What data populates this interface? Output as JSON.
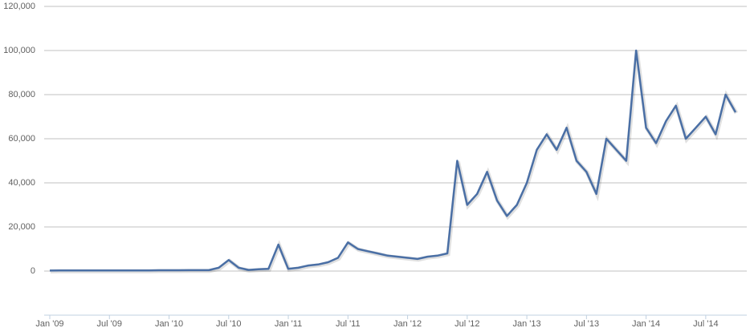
{
  "chart_data": {
    "type": "line",
    "x": [
      "2009-01",
      "2009-02",
      "2009-03",
      "2009-04",
      "2009-05",
      "2009-06",
      "2009-07",
      "2009-08",
      "2009-09",
      "2009-10",
      "2009-11",
      "2009-12",
      "2010-01",
      "2010-02",
      "2010-03",
      "2010-04",
      "2010-05",
      "2010-06",
      "2010-07",
      "2010-08",
      "2010-09",
      "2010-10",
      "2010-11",
      "2010-12",
      "2011-01",
      "2011-02",
      "2011-03",
      "2011-04",
      "2011-05",
      "2011-06",
      "2011-07",
      "2011-08",
      "2011-09",
      "2011-10",
      "2011-11",
      "2011-12",
      "2012-01",
      "2012-02",
      "2012-03",
      "2012-04",
      "2012-05",
      "2012-06",
      "2012-07",
      "2012-08",
      "2012-09",
      "2012-10",
      "2012-11",
      "2012-12",
      "2013-01",
      "2013-02",
      "2013-03",
      "2013-04",
      "2013-05",
      "2013-06",
      "2013-07",
      "2013-08",
      "2013-09",
      "2013-10",
      "2013-11",
      "2013-12",
      "2014-01",
      "2014-02",
      "2014-03",
      "2014-04",
      "2014-05",
      "2014-06",
      "2014-07",
      "2014-08",
      "2014-09",
      "2014-10"
    ],
    "series": [
      {
        "color": "#4a6fa5",
        "values": [
          200,
          250,
          250,
          300,
          300,
          300,
          300,
          300,
          300,
          300,
          300,
          350,
          350,
          350,
          400,
          400,
          400,
          1500,
          5000,
          1500,
          500,
          800,
          1000,
          12000,
          1000,
          1500,
          2500,
          3000,
          4000,
          6000,
          13000,
          10000,
          9000,
          8000,
          7000,
          6500,
          6000,
          5500,
          6500,
          7000,
          8000,
          50000,
          30000,
          35000,
          45000,
          32000,
          25000,
          30000,
          40000,
          55000,
          62000,
          55000,
          65000,
          50000,
          45000,
          35000,
          60000,
          55000,
          50000,
          100000,
          65000,
          58000,
          68000,
          75000,
          60000,
          65000,
          70000,
          62000,
          80000,
          72000
        ]
      }
    ],
    "xlim": [
      "2009-01",
      "2014-10"
    ],
    "xticks": [
      {
        "value": "2009-01",
        "label": "Jan '09"
      },
      {
        "value": "2009-07",
        "label": "Jul '09"
      },
      {
        "value": "2010-01",
        "label": "Jan '10"
      },
      {
        "value": "2010-07",
        "label": "Jul '10"
      },
      {
        "value": "2011-01",
        "label": "Jan '11"
      },
      {
        "value": "2011-07",
        "label": "Jul '11"
      },
      {
        "value": "2012-01",
        "label": "Jan '12"
      },
      {
        "value": "2012-07",
        "label": "Jul '12"
      },
      {
        "value": "2013-01",
        "label": "Jan '13"
      },
      {
        "value": "2013-07",
        "label": "Jul '13"
      },
      {
        "value": "2014-01",
        "label": "Jan '14"
      },
      {
        "value": "2014-07",
        "label": "Jul '14"
      }
    ],
    "ylim": [
      -20000,
      120000
    ],
    "yticks": [
      0,
      {
        "value": 20000,
        "label": "20,000"
      },
      {
        "value": 40000,
        "label": "40,000"
      },
      {
        "value": 60000,
        "label": "60,000"
      },
      {
        "value": 80000,
        "label": "80,000"
      },
      {
        "value": 100000,
        "label": "100,000"
      },
      {
        "value": 120000,
        "label": "120,000"
      }
    ],
    "grid": true
  }
}
